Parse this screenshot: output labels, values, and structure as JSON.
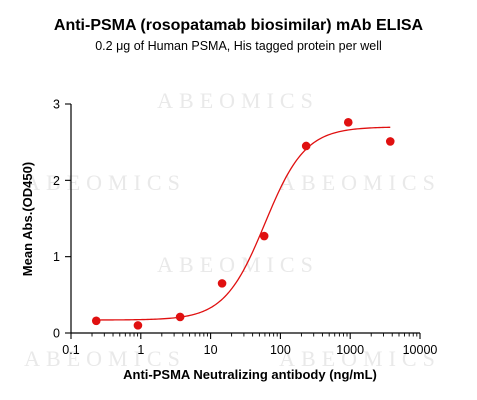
{
  "chart_data": {
    "type": "scatter",
    "title": "Anti-PSMA (rosopatamab biosimilar) mAb ELISA",
    "subtitle": "0.2 μg of Human PSMA, His tagged protein per well",
    "xlabel": "Anti-PSMA Neutralizing antibody (ng/mL)",
    "ylabel": "Mean Abs.(OD450)",
    "x_scale": "log",
    "xlim": [
      0.1,
      10000
    ],
    "ylim": [
      0,
      3
    ],
    "x_ticks": [
      "0.1",
      "1",
      "10",
      "100",
      "1000",
      "10000"
    ],
    "y_ticks": [
      "0",
      "1",
      "2",
      "3"
    ],
    "grid": false,
    "watermark": "ABEOMICS",
    "colors": {
      "points": "#e01010",
      "curve": "#e01010",
      "axis": "#000000"
    },
    "series": [
      {
        "x": [
          0.23,
          0.91,
          3.66,
          14.6,
          58.6,
          234,
          938,
          3750
        ],
        "y": [
          0.16,
          0.1,
          0.21,
          0.65,
          1.27,
          2.45,
          2.76,
          2.51
        ]
      }
    ],
    "fit": {
      "model": "4PL",
      "bottom": 0.17,
      "top": 2.7,
      "ec50": 60,
      "hill": 1.5
    }
  }
}
